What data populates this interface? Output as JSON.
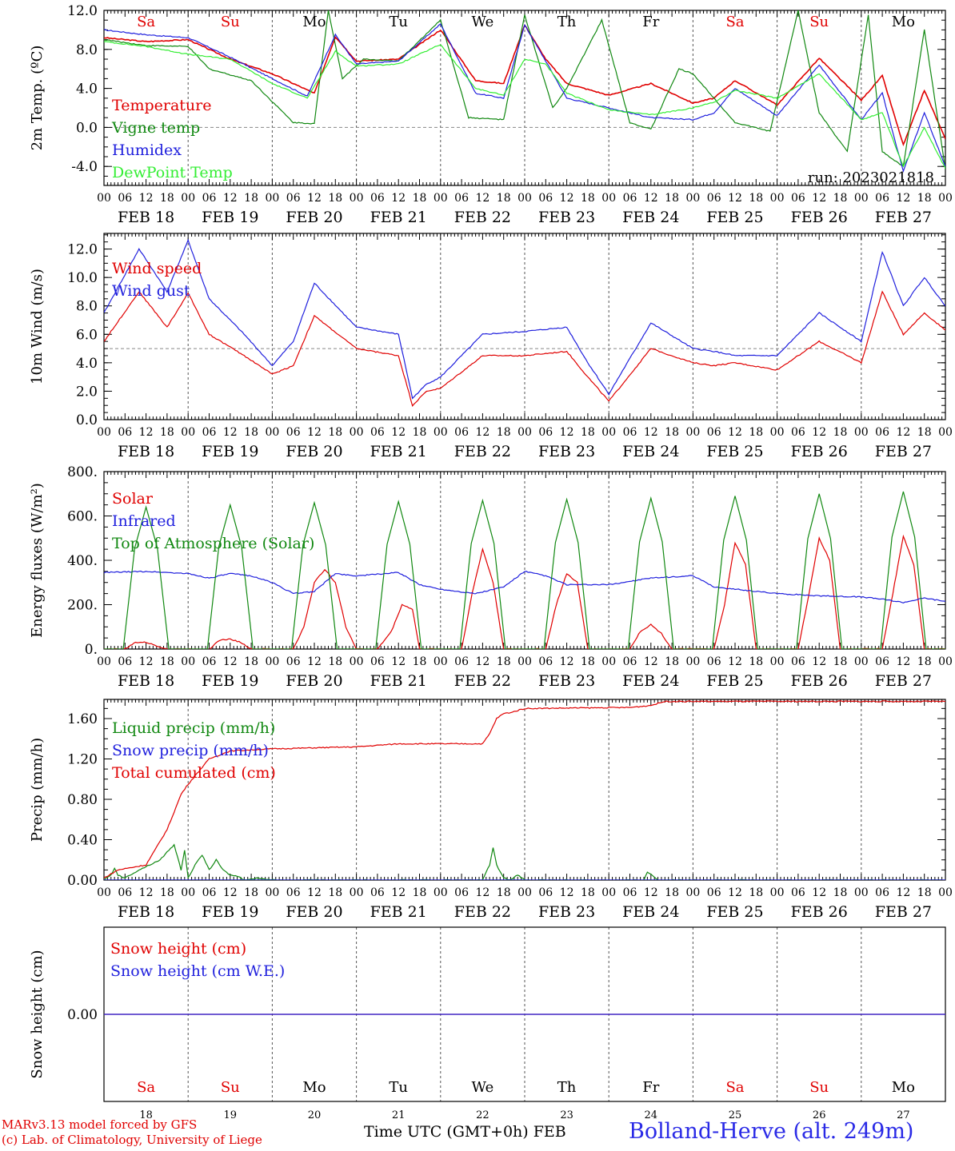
{
  "run_label": "run: 2023021818",
  "weekdays": [
    {
      "label": "Sa",
      "color": "#e00000"
    },
    {
      "label": "Su",
      "color": "#e00000"
    },
    {
      "label": "Mo",
      "color": "#000000"
    },
    {
      "label": "Tu",
      "color": "#000000"
    },
    {
      "label": "We",
      "color": "#000000"
    },
    {
      "label": "Th",
      "color": "#000000"
    },
    {
      "label": "Fr",
      "color": "#000000"
    },
    {
      "label": "Sa",
      "color": "#e00000"
    },
    {
      "label": "Su",
      "color": "#e00000"
    },
    {
      "label": "Mo",
      "color": "#000000"
    }
  ],
  "day_labels": [
    "FEB 18",
    "FEB 19",
    "FEB 20",
    "FEB 21",
    "FEB 22",
    "FEB 23",
    "FEB 24",
    "FEB 25",
    "FEB 26",
    "FEB 27"
  ],
  "day_numbers": [
    "18",
    "19",
    "20",
    "21",
    "22",
    "23",
    "24",
    "25",
    "26",
    "27"
  ],
  "hour_labels": [
    "00",
    "06",
    "12",
    "18"
  ],
  "hour_end_label": "00",
  "footer": {
    "credit_line1": "MARv3.13 model forced by GFS",
    "credit_line2": "(c) Lab. of Climatology, University of Liege",
    "x_title": "Time UTC (GMT+0h) FEB",
    "station": "Bolland-Herve (alt. 249m)"
  },
  "chart_data": [
    {
      "type": "line",
      "ylabel": "2m Temp. (ºC)",
      "ylim": [
        -5.95,
        12.0
      ],
      "yticks": [
        -4.0,
        0.0,
        4.0,
        8.0,
        12.0
      ],
      "ytick_labels": [
        "-4.0",
        "0.0",
        "4.0",
        "8.0",
        "12.0"
      ],
      "ref_line": 0.0,
      "x_unit": "hours since FEB 18 00 UTC",
      "series": [
        {
          "name": "Temperature",
          "color": "#e00000",
          "x": [
            0,
            12,
            24,
            36,
            48,
            60,
            66,
            72,
            84,
            96,
            106,
            114,
            120,
            126,
            132,
            144,
            156,
            168,
            174,
            180,
            192,
            204,
            216,
            222,
            228,
            234,
            240
          ],
          "y": [
            9.2,
            8.8,
            9.0,
            7.0,
            5.5,
            3.5,
            9.3,
            6.8,
            7.0,
            10.0,
            4.8,
            4.5,
            10.5,
            7.0,
            4.5,
            3.3,
            4.5,
            2.5,
            3.0,
            4.8,
            2.3,
            7.1,
            2.8,
            5.3,
            -1.8,
            3.8,
            -1.2
          ]
        },
        {
          "name": "Vigne temp",
          "color": "#118811",
          "x": [
            0,
            12,
            24,
            30,
            42,
            54,
            60,
            64,
            68,
            74,
            84,
            96,
            104,
            114,
            120,
            128,
            132,
            142,
            150,
            156,
            164,
            168,
            180,
            190,
            198,
            204,
            212,
            218,
            222,
            228,
            234,
            240
          ],
          "y": [
            9.0,
            8.4,
            8.3,
            6.0,
            4.8,
            0.5,
            0.4,
            12.0,
            5.0,
            7.0,
            6.8,
            11.0,
            1.0,
            0.8,
            11.5,
            2.0,
            4.0,
            11.0,
            0.5,
            -0.2,
            6.0,
            5.5,
            0.5,
            -0.4,
            12.0,
            1.5,
            -2.5,
            11.5,
            -2.5,
            -4.0,
            10.0,
            -4.3
          ]
        },
        {
          "name": "Humidex",
          "color": "#2020dd",
          "x": [
            0,
            12,
            24,
            36,
            48,
            58,
            66,
            72,
            84,
            96,
            106,
            114,
            120,
            126,
            132,
            144,
            156,
            168,
            174,
            180,
            192,
            204,
            216,
            222,
            228,
            234,
            240
          ],
          "y": [
            10.0,
            9.5,
            9.2,
            7.2,
            5.0,
            3.2,
            9.5,
            6.5,
            6.8,
            10.6,
            3.5,
            3.0,
            10.5,
            6.8,
            3.0,
            2.0,
            1.0,
            0.8,
            1.5,
            4.0,
            1.2,
            6.4,
            0.8,
            3.5,
            -4.5,
            1.5,
            -4.0
          ]
        },
        {
          "name": "DewPoint Temp",
          "color": "#33ee33",
          "x": [
            0,
            12,
            24,
            36,
            48,
            58,
            66,
            72,
            84,
            96,
            106,
            114,
            120,
            126,
            132,
            144,
            156,
            168,
            174,
            180,
            192,
            204,
            216,
            222,
            228,
            234,
            240
          ],
          "y": [
            8.8,
            8.3,
            7.5,
            7.0,
            4.5,
            3.0,
            7.8,
            6.3,
            6.5,
            8.5,
            4.0,
            3.3,
            7.0,
            6.5,
            3.5,
            1.8,
            1.3,
            2.0,
            2.6,
            3.8,
            3.0,
            5.5,
            0.8,
            1.5,
            -4.0,
            0.0,
            -4.2
          ]
        }
      ]
    },
    {
      "type": "line",
      "ylabel": "10m Wind (m/s)",
      "ylim": [
        0.0,
        13.1
      ],
      "yticks": [
        0.0,
        2.0,
        4.0,
        6.0,
        8.0,
        10.0,
        12.0
      ],
      "ytick_labels": [
        "0.0",
        "2.0",
        "4.0",
        "6.0",
        "8.0",
        "10.0",
        "12.0"
      ],
      "ref_line": 5.0,
      "x_unit": "hours since FEB 18 00 UTC",
      "series": [
        {
          "name": "Wind speed",
          "color": "#e00000",
          "x": [
            0,
            10,
            18,
            24,
            30,
            40,
            48,
            54,
            60,
            72,
            84,
            88,
            92,
            96,
            108,
            120,
            132,
            138,
            144,
            156,
            168,
            174,
            180,
            192,
            204,
            216,
            222,
            228,
            234,
            240
          ],
          "y": [
            5.5,
            9.0,
            6.5,
            8.9,
            6.0,
            4.5,
            3.2,
            3.8,
            7.3,
            5.0,
            4.5,
            1.0,
            2.0,
            2.2,
            4.5,
            4.5,
            4.8,
            3.0,
            1.3,
            5.0,
            4.0,
            3.8,
            4.0,
            3.5,
            5.5,
            4.0,
            9.0,
            6.0,
            7.5,
            6.3
          ]
        },
        {
          "name": "Wind gust",
          "color": "#2020dd",
          "x": [
            0,
            10,
            18,
            24,
            30,
            40,
            48,
            54,
            60,
            72,
            84,
            88,
            92,
            96,
            108,
            120,
            132,
            138,
            144,
            156,
            168,
            174,
            180,
            192,
            204,
            216,
            222,
            228,
            234,
            240
          ],
          "y": [
            7.5,
            12.0,
            9.0,
            12.6,
            8.5,
            6.0,
            3.8,
            5.5,
            9.6,
            6.5,
            6.0,
            1.5,
            2.5,
            3.0,
            6.0,
            6.2,
            6.5,
            4.0,
            1.8,
            6.8,
            5.0,
            4.8,
            4.5,
            4.5,
            7.5,
            5.5,
            11.8,
            8.0,
            10.0,
            8.0
          ]
        }
      ]
    },
    {
      "type": "line",
      "ylabel": "Energy fluxes (W/m²)",
      "ylim": [
        0,
        800
      ],
      "yticks": [
        0,
        200,
        400,
        600,
        800
      ],
      "ytick_labels": [
        "0.",
        "200.",
        "400.",
        "600.",
        "800."
      ],
      "x_unit": "hours since FEB 18 00 UTC",
      "series": [
        {
          "name": "Solar",
          "color": "#e00000",
          "x": [
            0,
            6,
            9,
            12,
            15,
            18,
            30,
            33,
            36,
            39,
            42,
            54,
            57,
            60,
            63,
            66,
            69,
            72,
            78,
            82,
            85,
            88,
            90,
            102,
            105,
            108,
            111,
            114,
            126,
            129,
            132,
            135,
            138,
            150,
            153,
            156,
            159,
            162,
            174,
            177,
            180,
            183,
            186,
            198,
            201,
            204,
            207,
            210,
            222,
            225,
            228,
            231,
            234,
            240
          ],
          "y": [
            0,
            0,
            30,
            30,
            15,
            0,
            0,
            40,
            45,
            30,
            0,
            0,
            100,
            300,
            360,
            300,
            100,
            0,
            0,
            80,
            200,
            180,
            0,
            0,
            250,
            450,
            300,
            0,
            0,
            200,
            340,
            300,
            0,
            0,
            80,
            110,
            70,
            0,
            0,
            200,
            480,
            380,
            0,
            0,
            240,
            500,
            400,
            0,
            0,
            250,
            510,
            380,
            0,
            0
          ]
        },
        {
          "name": "Infrared",
          "color": "#2020dd",
          "x": [
            0,
            12,
            24,
            30,
            36,
            42,
            48,
            54,
            60,
            66,
            72,
            84,
            90,
            96,
            106,
            114,
            120,
            126,
            132,
            144,
            156,
            168,
            174,
            180,
            192,
            204,
            216,
            222,
            228,
            234,
            240
          ],
          "y": [
            345,
            350,
            340,
            320,
            340,
            330,
            300,
            250,
            260,
            340,
            330,
            345,
            290,
            270,
            250,
            280,
            350,
            330,
            290,
            290,
            320,
            330,
            280,
            270,
            250,
            240,
            235,
            225,
            210,
            230,
            215
          ]
        },
        {
          "name": "Top of Atmosphere (Solar)",
          "color": "#118811",
          "x": [
            0,
            5.5,
            8.75,
            12,
            15.25,
            18.5,
            24
          ],
          "y": [
            0,
            0,
            455,
            640,
            455,
            0,
            0
          ],
          "daily_peaks": [
            640,
            650,
            660,
            665,
            670,
            675,
            680,
            690,
            700,
            710
          ]
        }
      ]
    },
    {
      "type": "line",
      "ylabel": "Precip (mm/h)",
      "ylim": [
        0.0,
        1.79
      ],
      "yticks": [
        0.0,
        0.4,
        0.8,
        1.2,
        1.6
      ],
      "ytick_labels": [
        "0.00",
        "0.40",
        "0.80",
        "1.20",
        "1.60"
      ],
      "x_unit": "hours since FEB 18 00 UTC",
      "series": [
        {
          "name": "Liquid precip (mm/h)",
          "color": "#118811",
          "x": [
            0,
            2,
            3,
            4,
            6,
            10,
            16,
            20,
            22,
            23,
            24,
            26,
            28,
            30,
            32,
            34,
            36,
            38,
            40,
            44,
            48,
            108,
            110,
            111,
            112,
            114,
            116,
            118,
            120,
            154,
            155,
            156,
            158,
            240
          ],
          "y": [
            0,
            0.05,
            0.12,
            0.05,
            0.02,
            0.1,
            0.2,
            0.35,
            0.1,
            0.3,
            0.02,
            0.15,
            0.25,
            0.1,
            0.2,
            0.1,
            0.05,
            0.04,
            0.0,
            0.02,
            0.0,
            0.0,
            0.15,
            0.32,
            0.15,
            0.02,
            0.0,
            0.05,
            0.0,
            0.0,
            0.08,
            0.06,
            0.0,
            0.0
          ]
        },
        {
          "name": "Snow precip (mm/h)",
          "color": "#2020dd",
          "x": [
            0,
            240
          ],
          "y": [
            0,
            0
          ]
        },
        {
          "name": "Total cumulated (cm)",
          "color": "#e00000",
          "x": [
            0,
            4,
            12,
            18,
            22,
            24,
            30,
            36,
            48,
            60,
            72,
            84,
            96,
            108,
            110,
            112,
            114,
            116,
            120,
            150,
            156,
            160,
            240
          ],
          "y": [
            0.02,
            0.1,
            0.15,
            0.5,
            0.85,
            0.95,
            1.2,
            1.28,
            1.3,
            1.31,
            1.32,
            1.35,
            1.35,
            1.35,
            1.45,
            1.6,
            1.65,
            1.66,
            1.7,
            1.71,
            1.73,
            1.77,
            1.77
          ]
        }
      ]
    },
    {
      "type": "line",
      "ylabel": "Snow height (cm)",
      "ylim": [
        -0.5,
        0.5
      ],
      "yticks": [
        0.0
      ],
      "ytick_labels": [
        "0.00"
      ],
      "x_unit": "hours since FEB 18 00 UTC",
      "series": [
        {
          "name": "Snow height (cm)",
          "color": "#e00000",
          "x": [
            0,
            240
          ],
          "y": [
            0,
            0
          ]
        },
        {
          "name": "Snow height (cm W.E.)",
          "color": "#2020dd",
          "x": [
            0,
            240
          ],
          "y": [
            0,
            0
          ]
        }
      ]
    }
  ]
}
